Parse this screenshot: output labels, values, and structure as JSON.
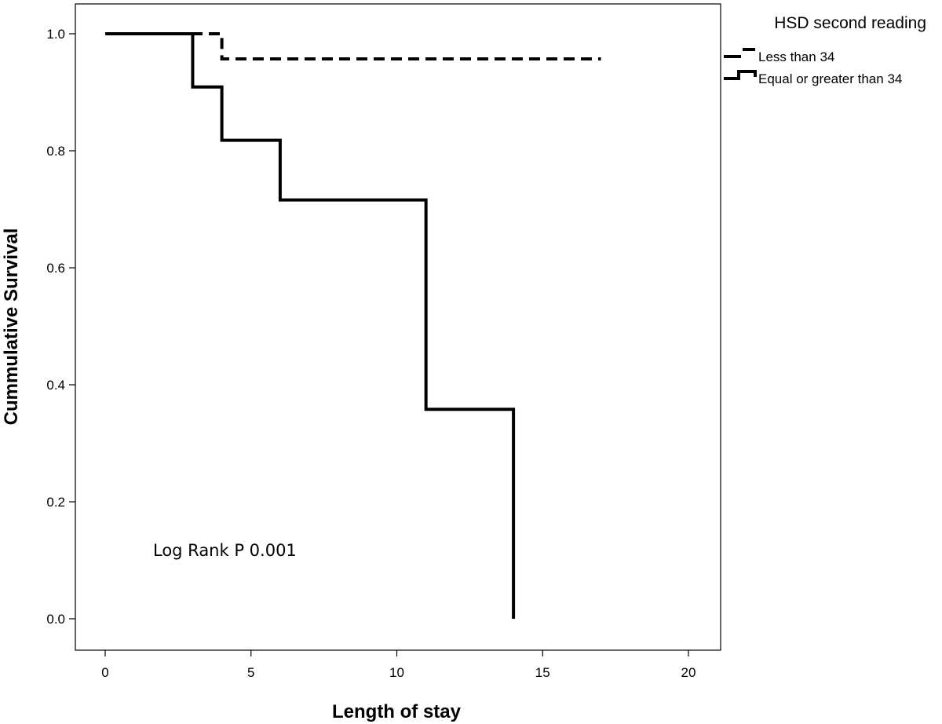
{
  "chart_data": {
    "type": "line",
    "subtype": "step",
    "xlabel": "Length of stay",
    "ylabel": "Cummulative Survival",
    "xlim": [
      -1,
      21
    ],
    "ylim": [
      -0.05,
      1.05
    ],
    "xticks": [
      "0",
      "5",
      "10",
      "15",
      "20"
    ],
    "yticks": [
      "0.0",
      "0.2",
      "0.4",
      "0.6",
      "0.8",
      "1.0"
    ],
    "grid": false,
    "legend": {
      "title": "HSD second reading",
      "placement": "top-right, outside plot"
    },
    "annotation": "Log Rank P 0.001",
    "series": [
      {
        "name": "Less than 34",
        "style": "dashed",
        "color": "#000000",
        "x": [
          0,
          4,
          4,
          17
        ],
        "y": [
          1.0,
          1.0,
          0.957,
          0.957
        ]
      },
      {
        "name": "Equal or greater than 34",
        "style": "solid",
        "color": "#000000",
        "x": [
          0,
          3,
          3,
          4,
          4,
          6,
          6,
          11,
          11,
          14,
          14
        ],
        "y": [
          1.0,
          1.0,
          0.909,
          0.909,
          0.818,
          0.818,
          0.716,
          0.716,
          0.358,
          0.358,
          0.0
        ]
      }
    ]
  }
}
